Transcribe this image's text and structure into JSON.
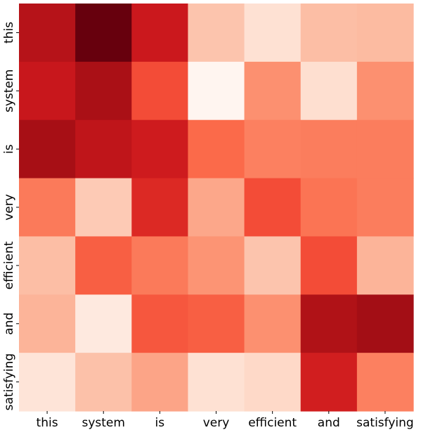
{
  "chart_data": {
    "type": "heatmap",
    "title": "",
    "xlabel": "",
    "ylabel": "",
    "x_categories": [
      "this",
      "system",
      "is",
      "very",
      "efficient",
      "and",
      "satisfying"
    ],
    "y_categories": [
      "this",
      "system",
      "is",
      "very",
      "efficient",
      "and",
      "satisfying"
    ],
    "colormap": "Reds",
    "colorbar": false,
    "value_range": [
      0,
      1
    ],
    "values": [
      [
        0.82,
        1.0,
        0.75,
        0.22,
        0.12,
        0.24,
        0.25
      ],
      [
        0.76,
        0.86,
        0.58,
        0.0,
        0.38,
        0.13,
        0.38
      ],
      [
        0.87,
        0.79,
        0.74,
        0.5,
        0.43,
        0.44,
        0.44
      ],
      [
        0.45,
        0.2,
        0.69,
        0.31,
        0.58,
        0.47,
        0.44
      ],
      [
        0.24,
        0.53,
        0.45,
        0.37,
        0.22,
        0.58,
        0.27
      ],
      [
        0.27,
        0.07,
        0.55,
        0.53,
        0.38,
        0.84,
        0.88
      ],
      [
        0.1,
        0.23,
        0.32,
        0.12,
        0.15,
        0.73,
        0.43
      ]
    ]
  }
}
